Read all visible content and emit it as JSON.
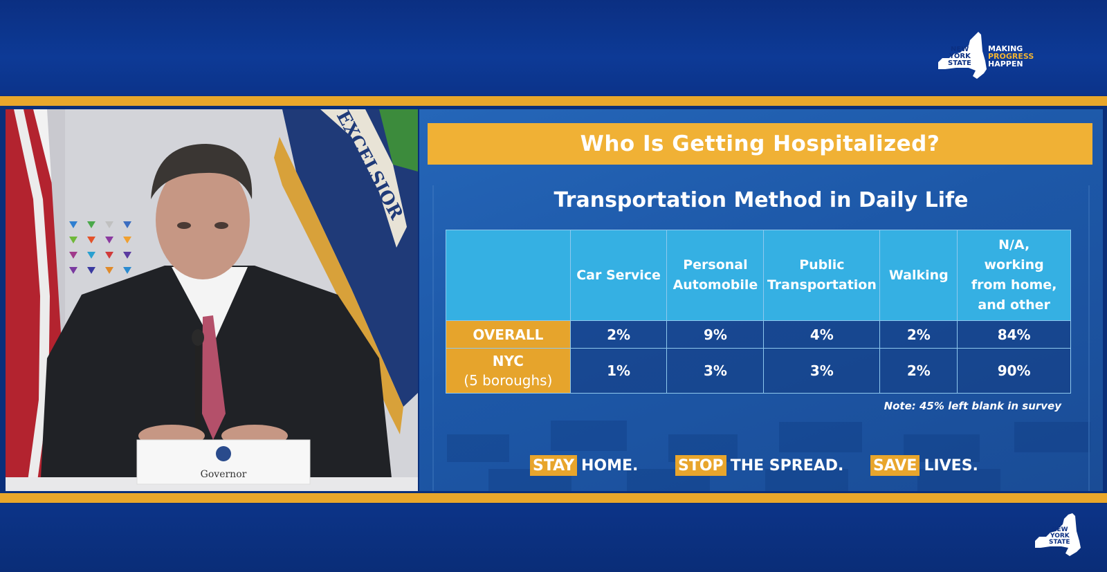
{
  "branding": {
    "logo_lines": [
      "NEW",
      "YORK",
      "STATE"
    ],
    "tagline_lines": [
      "MAKING",
      "PROGRESS",
      "HAPPEN"
    ],
    "corner_logo_lines": [
      "NEW",
      "YORK",
      "STATE"
    ]
  },
  "video": {
    "seal_text": "EXCELSIOR",
    "nameplate": "Governor"
  },
  "slide": {
    "title": "Who Is Getting Hospitalized?",
    "subtitle": "Transportation Method in Daily Life",
    "table": {
      "headers": [
        "",
        "Car Service",
        "Personal Automobile",
        "Public Transportation",
        "Walking",
        "N/A, working from home, and other"
      ],
      "header_lines": [
        [],
        [
          "Car Service"
        ],
        [
          "Personal",
          "Automobile"
        ],
        [
          "Public",
          "Transportation"
        ],
        [
          "Walking"
        ],
        [
          "N/A,",
          "working",
          "from home,",
          "and other"
        ]
      ],
      "rows": [
        {
          "label_lines": [
            "OVERALL"
          ],
          "values": [
            "2%",
            "9%",
            "4%",
            "2%",
            "84%"
          ]
        },
        {
          "label_lines": [
            "NYC",
            "(5 boroughs)"
          ],
          "values": [
            "1%",
            "3%",
            "3%",
            "2%",
            "90%"
          ]
        }
      ]
    },
    "note": "Note: 45% left blank in survey",
    "slogans": [
      {
        "highlight": "STAY",
        "rest": "HOME."
      },
      {
        "highlight": "STOP",
        "rest": "THE SPREAD."
      },
      {
        "highlight": "SAVE",
        "rest": "LIVES."
      }
    ]
  },
  "colors": {
    "navy": "#0b2f82",
    "gold": "#e9a72b",
    "header_blue": "#35b0e3"
  }
}
